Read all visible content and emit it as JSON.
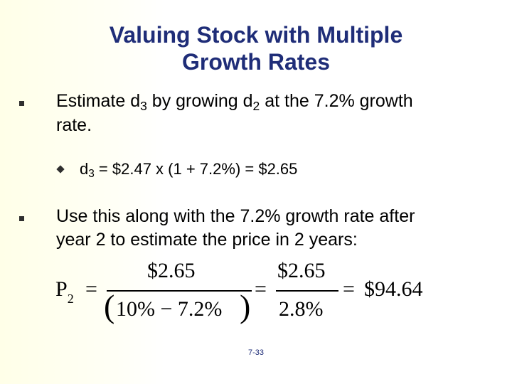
{
  "slide": {
    "title_line1": "Valuing Stock with Multiple",
    "title_line2": "Growth Rates",
    "bullets": [
      {
        "pre": "Estimate d",
        "sub1": "3",
        "mid": " by growing d",
        "sub2": "2",
        "post": " at the 7.2% growth",
        "line2": "rate."
      },
      {
        "line1": "Use this along with the 7.2% growth rate after",
        "line2": "year 2 to estimate the price in 2 years:"
      }
    ],
    "sub_bullet": {
      "pre": "d",
      "sub": "3",
      "post": " = $2.47 x (1 + 7.2%) = $2.65"
    },
    "equation": {
      "lhs": "P",
      "lhs_sub": "2",
      "equals": "=",
      "num1": "$2.65",
      "den1_open": "(",
      "den1": "10% − 7.2%",
      "den1_close": ")",
      "num2": "$2.65",
      "den2": "2.8%",
      "result": "$94.64"
    },
    "slide_number": "7-33"
  },
  "colors": {
    "title": "#1f2d78",
    "bullet": "#2f2f2f",
    "band": "#ffffe8"
  }
}
